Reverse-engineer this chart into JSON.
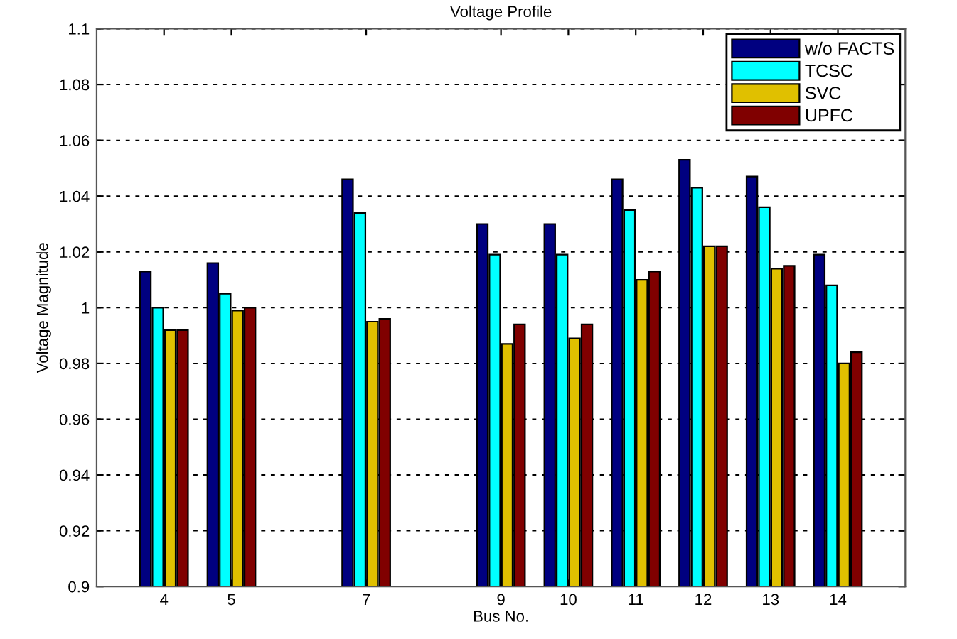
{
  "chart_data": {
    "type": "bar",
    "title": "Voltage Profile",
    "xlabel": "Bus No.",
    "ylabel": "Voltage Magnitude",
    "x": [
      4,
      5,
      7,
      9,
      10,
      11,
      12,
      13,
      14
    ],
    "series": [
      {
        "name": "w/o FACTS",
        "color": "#000080",
        "values": [
          1.013,
          1.016,
          1.046,
          1.03,
          1.03,
          1.046,
          1.053,
          1.047,
          1.019
        ]
      },
      {
        "name": "TCSC",
        "color": "#00ffff",
        "values": [
          1.0,
          1.005,
          1.034,
          1.019,
          1.019,
          1.035,
          1.043,
          1.036,
          1.008
        ]
      },
      {
        "name": "SVC",
        "color": "#e0c000",
        "values": [
          0.992,
          0.999,
          0.995,
          0.987,
          0.989,
          1.01,
          1.022,
          1.014,
          0.98
        ]
      },
      {
        "name": "UPFC",
        "color": "#800000",
        "values": [
          0.992,
          1.0,
          0.996,
          0.994,
          0.994,
          1.013,
          1.022,
          1.015,
          0.984
        ]
      }
    ],
    "xlim": [
      3,
      15
    ],
    "xticks": [
      4,
      5,
      7,
      9,
      10,
      11,
      12,
      13,
      14
    ],
    "ylim": [
      0.9,
      1.1
    ],
    "yticks": [
      0.9,
      0.92,
      0.94,
      0.96,
      0.98,
      1,
      1.02,
      1.04,
      1.06,
      1.08,
      1.1
    ],
    "grid": "y",
    "legend": "top right"
  }
}
